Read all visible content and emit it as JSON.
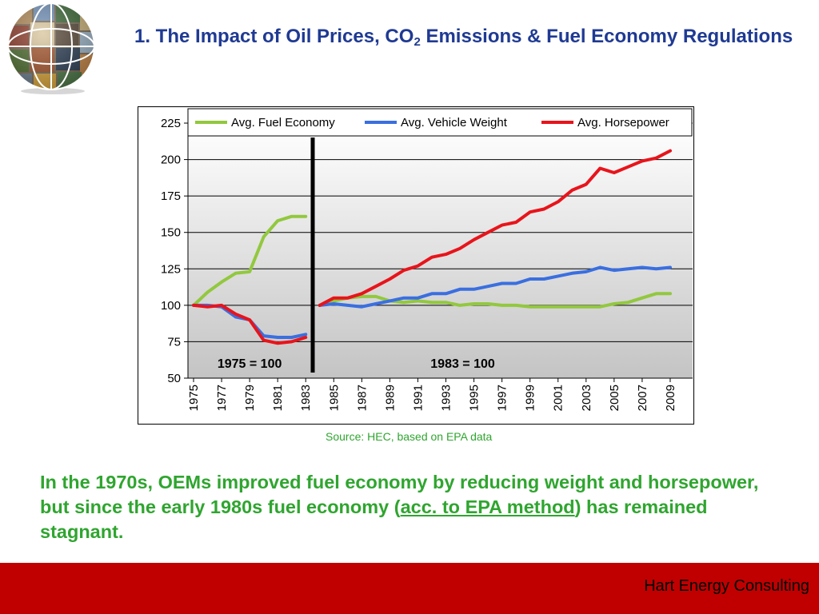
{
  "slide": {
    "title_part1": "1. The Impact of Oil Prices, CO",
    "title_sub": "2",
    "title_part2": " Emissions & Fuel Economy Regulations",
    "source": "Source: HEC, based on EPA data",
    "body_part1": "In the 1970s, OEMs improved fuel economy by reducing weight and horsepower, but since the early 1980s fuel economy (",
    "body_link": "acc. to EPA method",
    "body_part2": ") has remained stagnant.",
    "footer": "Hart Energy Consulting"
  },
  "colors": {
    "title": "#1f3a93",
    "text_green": "#2fa52f",
    "footer_bg": "#c00000",
    "fuel_economy": "#92c83e",
    "vehicle_weight": "#3a6fe0",
    "horsepower": "#e8141b"
  },
  "chart_data": {
    "type": "line",
    "ylim": [
      50,
      225
    ],
    "yticks": [
      50,
      75,
      100,
      125,
      150,
      175,
      200,
      225
    ],
    "x_tick_labels": [
      "1975",
      "1977",
      "1979",
      "1981",
      "1983",
      "1985",
      "1987",
      "1989",
      "1991",
      "1993",
      "1995",
      "1997",
      "1999",
      "2001",
      "2003",
      "2005",
      "2007",
      "2009"
    ],
    "grid": "horizontal",
    "legend_position": "top",
    "background": "gradient white to gray",
    "divider_year": 1983.5,
    "annotations": [
      {
        "text": "1975 = 100",
        "x": 1979.0,
        "y": 60
      },
      {
        "text": "1983 = 100",
        "x": 1994.2,
        "y": 60
      }
    ],
    "series": [
      {
        "name": "Avg. Fuel Economy",
        "color_key": "fuel_economy",
        "segments": [
          {
            "x": [
              1975,
              1976,
              1977,
              1978,
              1979,
              1980,
              1981,
              1982,
              1983
            ],
            "y": [
              100,
              109,
              116,
              122,
              123,
              147,
              158,
              161,
              161
            ]
          },
          {
            "x": [
              1984,
              1985,
              1986,
              1987,
              1988,
              1989,
              1990,
              1991,
              1992,
              1993,
              1994,
              1995,
              1996,
              1997,
              1998,
              1999,
              2000,
              2001,
              2002,
              2003,
              2004,
              2005,
              2006,
              2007,
              2008,
              2009
            ],
            "y": [
              100,
              103,
              105,
              106,
              106,
              103,
              102,
              103,
              102,
              102,
              100,
              101,
              101,
              100,
              100,
              99,
              99,
              99,
              99,
              99,
              99,
              101,
              102,
              105,
              108,
              108
            ]
          }
        ]
      },
      {
        "name": "Avg. Vehicle Weight",
        "color_key": "vehicle_weight",
        "segments": [
          {
            "x": [
              1975,
              1976,
              1977,
              1978,
              1979,
              1980,
              1981,
              1982,
              1983
            ],
            "y": [
              100,
              100,
              99,
              92,
              90,
              79,
              78,
              78,
              80
            ]
          },
          {
            "x": [
              1984,
              1985,
              1986,
              1987,
              1988,
              1989,
              1990,
              1991,
              1992,
              1993,
              1994,
              1995,
              1996,
              1997,
              1998,
              1999,
              2000,
              2001,
              2002,
              2003,
              2004,
              2005,
              2006,
              2007,
              2008,
              2009
            ],
            "y": [
              100,
              101,
              100,
              99,
              101,
              103,
              105,
              105,
              108,
              108,
              111,
              111,
              113,
              115,
              115,
              118,
              118,
              120,
              122,
              123,
              126,
              124,
              125,
              126,
              125,
              126
            ]
          }
        ]
      },
      {
        "name": "Avg. Horsepower",
        "color_key": "horsepower",
        "segments": [
          {
            "x": [
              1975,
              1976,
              1977,
              1978,
              1979,
              1980,
              1981,
              1982,
              1983
            ],
            "y": [
              100,
              99,
              100,
              94,
              90,
              76,
              74,
              75,
              78
            ]
          },
          {
            "x": [
              1984,
              1985,
              1986,
              1987,
              1988,
              1989,
              1990,
              1991,
              1992,
              1993,
              1994,
              1995,
              1996,
              1997,
              1998,
              1999,
              2000,
              2001,
              2002,
              2003,
              2004,
              2005,
              2006,
              2007,
              2008,
              2009
            ],
            "y": [
              100,
              105,
              105,
              108,
              113,
              118,
              124,
              127,
              133,
              135,
              139,
              145,
              150,
              155,
              157,
              164,
              166,
              171,
              179,
              183,
              194,
              191,
              195,
              199,
              201,
              206
            ]
          }
        ]
      }
    ]
  }
}
